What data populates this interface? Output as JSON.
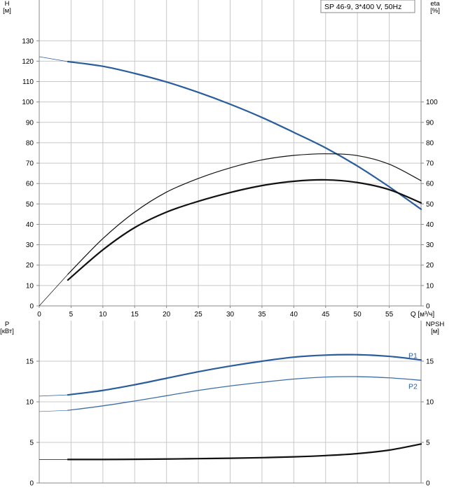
{
  "legend": {
    "text": "SP 46-9, 3*400 V, 50Hz"
  },
  "colors": {
    "blue": "#2a5d9c",
    "blue_light": "#3d6ea8",
    "black": "#111111",
    "grid": "#c8c8c8",
    "frame": "#888888"
  },
  "chart_data": [
    {
      "type": "line",
      "panel": "top",
      "y_left_label": [
        "H",
        "[м]"
      ],
      "y_right_label": [
        "eta",
        "[%]"
      ],
      "x_label": "Q [м³/ч]",
      "x_ticks": [
        0,
        5,
        10,
        15,
        20,
        25,
        30,
        35,
        40,
        45,
        50,
        55
      ],
      "x_range": [
        0,
        60
      ],
      "y_left_ticks": [
        0,
        10,
        20,
        30,
        40,
        50,
        60,
        70,
        80,
        90,
        100,
        110,
        120,
        130
      ],
      "y_left_range": [
        0,
        150
      ],
      "y_right_ticks": [
        0,
        10,
        20,
        30,
        40,
        50,
        60,
        70,
        80,
        90,
        100
      ],
      "y_right_range": [
        0,
        150
      ],
      "grid": true,
      "series": [
        {
          "role": "H",
          "color": "#2a5d9c",
          "extension": {
            "x": [
              0,
              4.5
            ],
            "y": [
              122.2,
              119.8
            ]
          },
          "x": [
            4.5,
            10,
            15,
            20,
            25,
            30,
            35,
            40,
            45,
            50,
            55,
            60
          ],
          "y": [
            119.8,
            117.5,
            114,
            109.8,
            104.7,
            98.9,
            92.4,
            85.1,
            77.5,
            68.6,
            58.4,
            47.4
          ]
        },
        {
          "role": "eta",
          "color": "#111111",
          "extension": {
            "x": [
              0,
              4.5
            ],
            "y": [
              0,
              15.5
            ]
          },
          "x": [
            4.5,
            10,
            15,
            20,
            25,
            30,
            35,
            40,
            45,
            50,
            55,
            60
          ],
          "y": [
            15.5,
            33,
            46,
            55.8,
            62.5,
            67.7,
            71.6,
            73.8,
            74.6,
            73.7,
            69.5,
            61.4
          ]
        },
        {
          "role": "eta_total",
          "color": "#111111",
          "x": [
            4.5,
            10,
            15,
            20,
            25,
            30,
            35,
            40,
            45,
            50,
            55,
            60
          ],
          "y": [
            12.7,
            27.5,
            38.4,
            46,
            51.3,
            55.6,
            59,
            61.1,
            61.8,
            60.5,
            57,
            50.5
          ]
        }
      ]
    },
    {
      "type": "line",
      "panel": "bottom",
      "y_left_label": [
        "P",
        "[кВт]"
      ],
      "y_right_label": [
        "NPSH",
        "[м]"
      ],
      "x_range": [
        0,
        60
      ],
      "y_left_ticks": [
        0,
        5,
        10,
        15
      ],
      "y_left_range": [
        0,
        20
      ],
      "y_right_ticks": [
        0,
        5,
        10,
        15
      ],
      "y_right_range": [
        0,
        20
      ],
      "grid": true,
      "series": [
        {
          "name": "P1",
          "color": "#2a5d9c",
          "extension": {
            "x": [
              0,
              4.5
            ],
            "y": [
              10.7,
              10.85
            ]
          },
          "x": [
            4.5,
            10,
            15,
            20,
            25,
            30,
            35,
            40,
            45,
            50,
            55,
            60
          ],
          "y": [
            10.85,
            11.4,
            12.1,
            12.9,
            13.7,
            14.4,
            15.0,
            15.5,
            15.75,
            15.8,
            15.6,
            15.15
          ]
        },
        {
          "name": "P2",
          "color": "#3d6ea8",
          "extension": {
            "x": [
              0,
              4.5
            ],
            "y": [
              8.8,
              8.95
            ]
          },
          "x": [
            4.5,
            10,
            15,
            20,
            25,
            30,
            35,
            40,
            45,
            50,
            55,
            60
          ],
          "y": [
            8.95,
            9.5,
            10.1,
            10.75,
            11.4,
            11.95,
            12.4,
            12.8,
            13.05,
            13.1,
            12.95,
            12.65
          ]
        },
        {
          "role": "NPSH",
          "color": "#111111",
          "extension": {
            "x": [
              0,
              4.5
            ],
            "y": [
              2.9,
              2.9
            ]
          },
          "x": [
            4.5,
            10,
            15,
            20,
            25,
            30,
            35,
            40,
            45,
            50,
            55,
            60
          ],
          "y": [
            2.9,
            2.9,
            2.92,
            2.95,
            3.0,
            3.05,
            3.12,
            3.22,
            3.38,
            3.62,
            4.05,
            4.8
          ]
        }
      ]
    }
  ]
}
